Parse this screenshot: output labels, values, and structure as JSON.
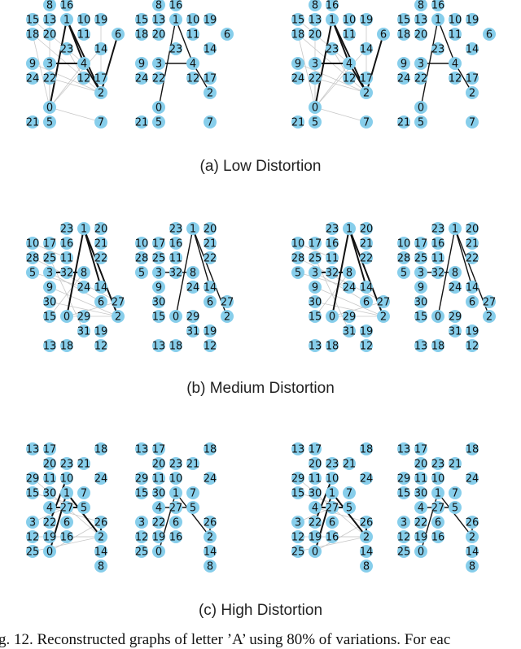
{
  "figure": {
    "subcaptions": [
      "(a) Low Distortion",
      "(b) Medium Distortion",
      "(c) High Distortion"
    ],
    "caption": "g. 12.  Reconstructed graphs of letter ’A’ using 80% of variations. For eac",
    "node_color": "#87ceeb",
    "edge_color": "#111111",
    "faint_edge_color": "#c8c8c8",
    "rows": [
      {
        "name": "low",
        "nodes": [
          "15",
          "18",
          "8",
          "20",
          "13",
          "16",
          "10",
          "1",
          "11",
          "19",
          "6",
          "23",
          "14",
          "9",
          "3",
          "4",
          "12",
          "17",
          "22",
          "24",
          "0",
          "2",
          "21",
          "5",
          "7"
        ],
        "strong_edges": [
          [
            "1",
            "0"
          ],
          [
            "1",
            "4"
          ],
          [
            "4",
            "2"
          ],
          [
            "3",
            "4"
          ],
          [
            "6",
            "2"
          ],
          [
            "1",
            "2"
          ]
        ],
        "faint_edges": [
          [
            "13",
            "0"
          ],
          [
            "18",
            "2"
          ],
          [
            "15",
            "4"
          ],
          [
            "0",
            "7"
          ],
          [
            "0",
            "4"
          ],
          [
            "9",
            "2"
          ],
          [
            "22",
            "2"
          ],
          [
            "19",
            "17"
          ],
          [
            "23",
            "12"
          ],
          [
            "0",
            "14"
          ],
          [
            "3",
            "0"
          ],
          [
            "18",
            "0"
          ]
        ]
      },
      {
        "name": "medium",
        "nodes": [
          "23",
          "1",
          "16",
          "21",
          "20",
          "10",
          "17",
          "22",
          "5",
          "28",
          "25",
          "11",
          "3",
          "32",
          "8",
          "24",
          "9",
          "14",
          "6",
          "27",
          "30",
          "15",
          "0",
          "29",
          "2",
          "31",
          "13",
          "18",
          "19",
          "12"
        ],
        "strong_edges": [
          [
            "1",
            "0"
          ],
          [
            "1",
            "2"
          ],
          [
            "3",
            "8"
          ],
          [
            "1",
            "14"
          ]
        ],
        "faint_edges": [
          [
            "25",
            "31"
          ],
          [
            "5",
            "24"
          ],
          [
            "0",
            "2"
          ],
          [
            "9",
            "2"
          ],
          [
            "15",
            "8"
          ],
          [
            "28",
            "27"
          ],
          [
            "30",
            "2"
          ],
          [
            "0",
            "27"
          ],
          [
            "10",
            "11"
          ],
          [
            "3",
            "6"
          ]
        ]
      },
      {
        "name": "high",
        "nodes": [
          "13",
          "17",
          "18",
          "20",
          "11",
          "23",
          "21",
          "24",
          "29",
          "15",
          "30",
          "7",
          "10",
          "1",
          "4",
          "27",
          "5",
          "3",
          "22",
          "26",
          "19",
          "16",
          "6",
          "12",
          "25",
          "0",
          "2",
          "14",
          "8"
        ],
        "strong_edges": [
          [
            "1",
            "0"
          ],
          [
            "1",
            "2"
          ],
          [
            "4",
            "5"
          ],
          [
            "26",
            "2"
          ],
          [
            "10",
            "22"
          ]
        ],
        "faint_edges": [
          [
            "12",
            "2"
          ],
          [
            "25",
            "2"
          ],
          [
            "4",
            "26"
          ],
          [
            "29",
            "2"
          ],
          [
            "0",
            "26"
          ],
          [
            "3",
            "27"
          ],
          [
            "15",
            "5"
          ],
          [
            "19",
            "2"
          ],
          [
            "30",
            "27"
          ]
        ]
      }
    ]
  }
}
